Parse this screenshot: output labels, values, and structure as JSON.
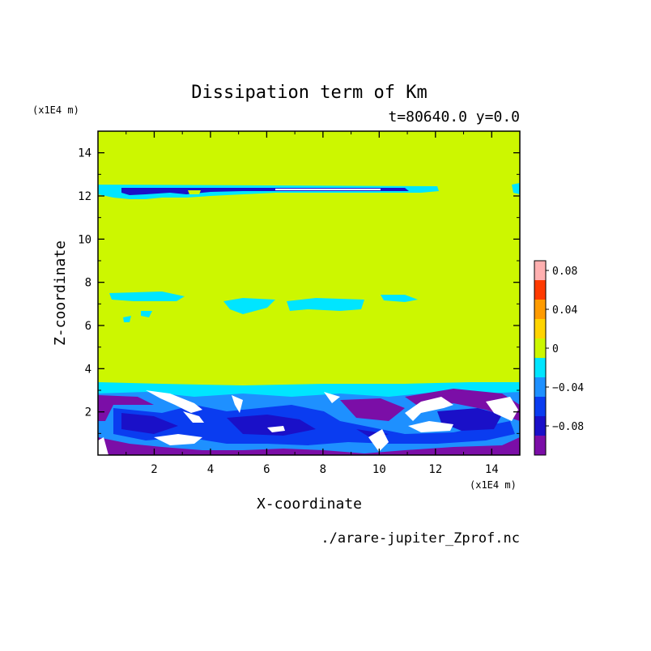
{
  "chart_data": {
    "type": "heatmap",
    "title": "Dissipation term of Km",
    "subtitle": "t=80640.0 y=0.0",
    "xlabel": "X-coordinate",
    "ylabel": "Z-coordinate",
    "x_unit": "(x1E4 m)",
    "y_unit": "(x1E4 m)",
    "source_file": "./arare-jupiter_Zprof.nc",
    "xlim": [
      0.0,
      15.0
    ],
    "ylim": [
      0.0,
      15.0
    ],
    "x_ticks": [
      2,
      4,
      6,
      8,
      10,
      12,
      14
    ],
    "y_ticks": [
      2,
      4,
      6,
      8,
      10,
      12,
      14
    ],
    "background_level": "0",
    "colorbar": {
      "levels": [
        -0.1,
        -0.08,
        -0.06,
        -0.04,
        -0.02,
        0,
        0.02,
        0.04,
        0.06,
        0.08,
        0.1
      ],
      "colors": [
        "#7b0ea7",
        "#1a10c8",
        "#0a3cf0",
        "#1e90ff",
        "#00e5ff",
        "#ccf700",
        "#ffd400",
        "#ff9b00",
        "#ff3a00",
        "#e60000"
      ],
      "overflow_colors": {
        "below": "#ffffff",
        "above": "#ffb0b0"
      },
      "tick_labels": [
        "0.08",
        "0.04",
        "0",
        "−0.04",
        "−0.08"
      ],
      "tick_values": [
        0.08,
        0.04,
        0,
        -0.04,
        -0.08
      ]
    },
    "features": {
      "top_band": {
        "z": 12.1,
        "x_range": [
          0.0,
          12.0
        ],
        "levels": [
          "-0.02",
          "-0.06",
          "-0.08"
        ]
      },
      "mid_patches": [
        {
          "x": [
            0.5,
            3.0
          ],
          "z": [
            7.1,
            7.5
          ],
          "level": "-0.02"
        },
        {
          "x": [
            4.6,
            6.2
          ],
          "z": [
            6.5,
            7.0
          ],
          "level": "-0.02"
        },
        {
          "x": [
            6.5,
            9.0
          ],
          "z": [
            6.5,
            7.0
          ],
          "level": "-0.02"
        },
        {
          "x": [
            9.9,
            11.2
          ],
          "z": [
            7.1,
            7.4
          ],
          "level": "-0.02"
        }
      ],
      "bottom_layer": {
        "z": [
          0.0,
          3.3
        ],
        "x_range": [
          0.0,
          15.0
        ],
        "levels": [
          "-0.02",
          "-0.04",
          "-0.06",
          "-0.08",
          "<-0.1"
        ]
      }
    }
  }
}
